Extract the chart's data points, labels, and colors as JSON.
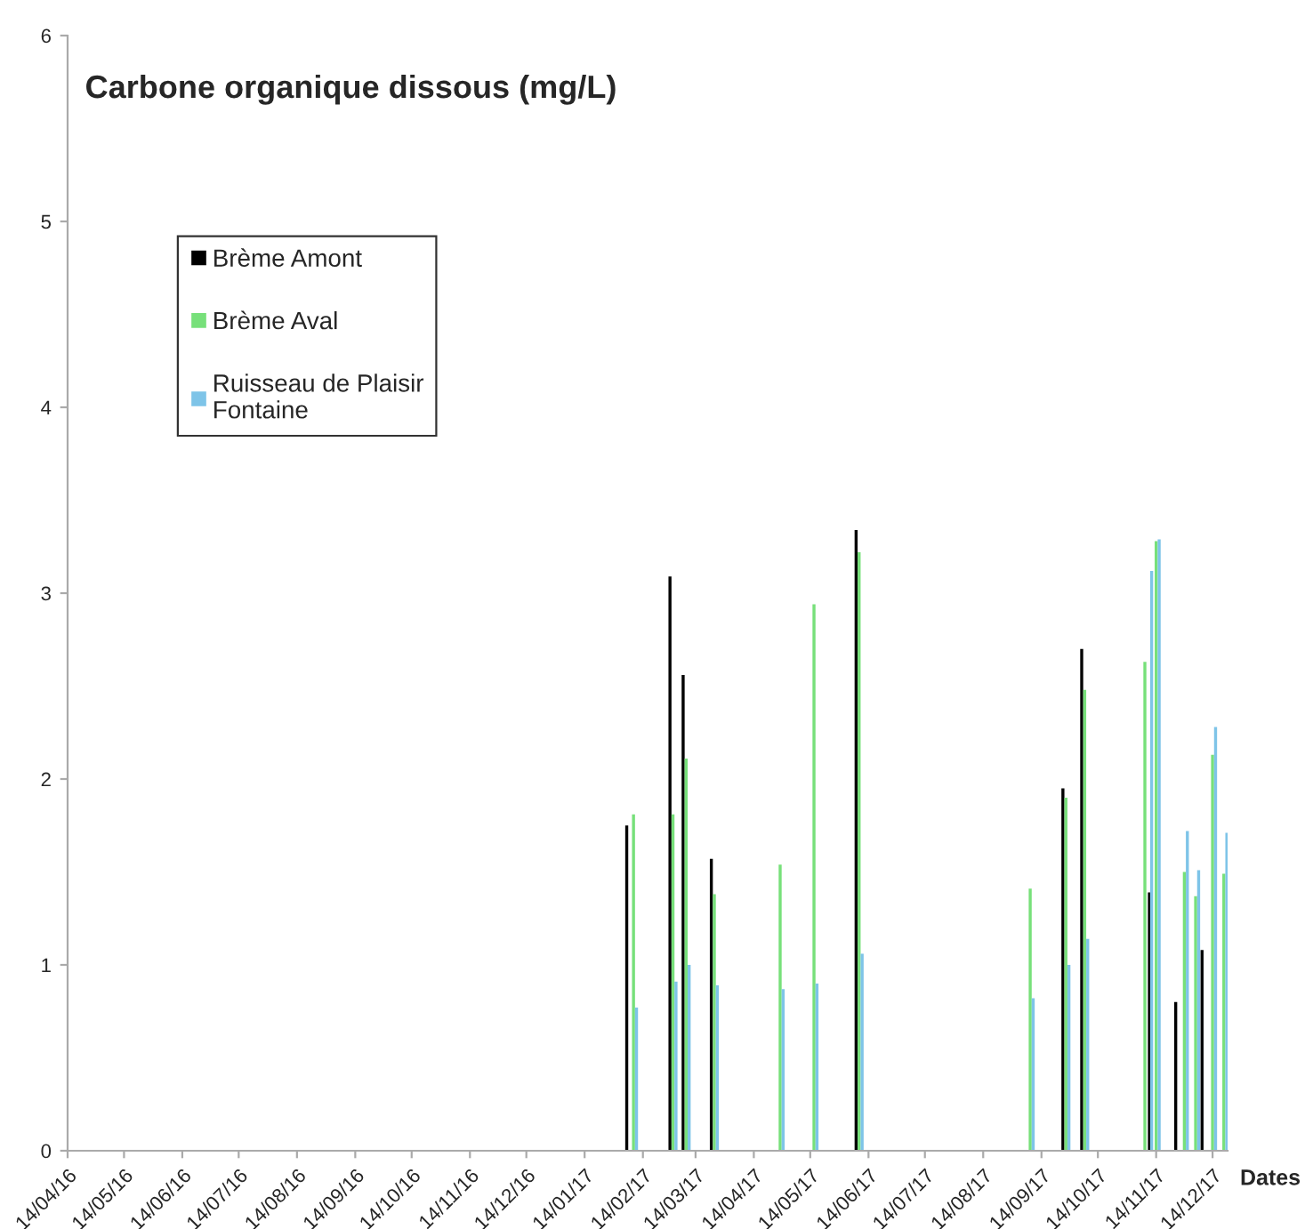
{
  "chart_data": {
    "type": "bar",
    "title": "Carbone organique dissous (mg/L)",
    "xlabel": "Dates",
    "xlim": [
      "2016-04-14",
      "2017-12-22"
    ],
    "xticks": [
      {
        "value": "2016-04-14",
        "label": "14/04/16"
      },
      {
        "value": "2016-05-14",
        "label": "14/05/16"
      },
      {
        "value": "2016-06-14",
        "label": "14/06/16"
      },
      {
        "value": "2016-07-14",
        "label": "14/07/16"
      },
      {
        "value": "2016-08-14",
        "label": "14/08/16"
      },
      {
        "value": "2016-09-14",
        "label": "14/09/16"
      },
      {
        "value": "2016-10-14",
        "label": "14/10/16"
      },
      {
        "value": "2016-11-14",
        "label": "14/11/16"
      },
      {
        "value": "2016-12-14",
        "label": "14/12/16"
      },
      {
        "value": "2017-01-14",
        "label": "14/01/17"
      },
      {
        "value": "2017-02-14",
        "label": "14/02/17"
      },
      {
        "value": "2017-03-14",
        "label": "14/03/17"
      },
      {
        "value": "2017-04-14",
        "label": "14/04/17"
      },
      {
        "value": "2017-05-14",
        "label": "14/05/17"
      },
      {
        "value": "2017-06-14",
        "label": "14/06/17"
      },
      {
        "value": "2017-07-14",
        "label": "14/07/17"
      },
      {
        "value": "2017-08-14",
        "label": "14/08/17"
      },
      {
        "value": "2017-09-14",
        "label": "14/09/17"
      },
      {
        "value": "2017-10-14",
        "label": "14/10/17"
      },
      {
        "value": "2017-11-14",
        "label": "14/11/17"
      },
      {
        "value": "2017-12-14",
        "label": "14/12/17"
      }
    ],
    "ylim": [
      0,
      6
    ],
    "yticks": [
      0,
      1,
      2,
      3,
      4,
      5,
      6
    ],
    "grid": false,
    "legend": "top left",
    "series": [
      {
        "name": "Brème Amont",
        "color": "#000000",
        "x": [
          "2017-02-07",
          "2017-03-02",
          "2017-03-09",
          "2017-03-24",
          "2017-06-09",
          "2017-09-27",
          "2017-10-07",
          "2017-11-12",
          "2017-11-26",
          "2017-12-10"
        ],
        "values": [
          1.75,
          3.09,
          2.56,
          1.57,
          3.34,
          1.95,
          2.7,
          1.39,
          0.8,
          1.08
        ]
      },
      {
        "name": "Brème Aval",
        "color": "#77e07a",
        "x": [
          "2017-02-09",
          "2017-03-02",
          "2017-03-09",
          "2017-03-24",
          "2017-04-28",
          "2017-05-16",
          "2017-06-09",
          "2017-09-08",
          "2017-09-27",
          "2017-10-07",
          "2017-11-08",
          "2017-11-14",
          "2017-11-29",
          "2017-12-05",
          "2017-12-14",
          "2017-12-20"
        ],
        "values": [
          1.81,
          1.81,
          2.11,
          1.38,
          1.54,
          2.94,
          3.22,
          1.41,
          1.9,
          2.48,
          2.63,
          3.28,
          1.5,
          1.37,
          2.13,
          1.49
        ]
      },
      {
        "name": "Ruisseau de Plaisir\nFontaine",
        "color": "#7ec4e8",
        "x": [
          "2017-02-09",
          "2017-03-02",
          "2017-03-09",
          "2017-03-24",
          "2017-04-28",
          "2017-05-16",
          "2017-06-09",
          "2017-09-08",
          "2017-09-27",
          "2017-10-07",
          "2017-11-10",
          "2017-11-14",
          "2017-11-29",
          "2017-12-05",
          "2017-12-14",
          "2017-12-20"
        ],
        "values": [
          0.77,
          0.91,
          1.0,
          0.89,
          0.87,
          0.9,
          1.06,
          0.82,
          1.0,
          1.14,
          3.12,
          3.29,
          1.72,
          1.51,
          2.28,
          1.71
        ]
      }
    ]
  }
}
